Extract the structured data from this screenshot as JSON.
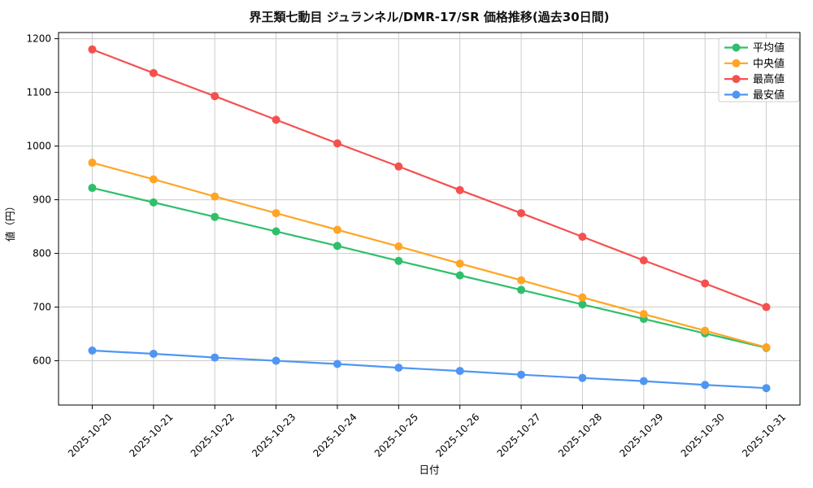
{
  "chart_data": {
    "type": "line",
    "title": "界王類七動目 ジュランネル/DMR-17/SR 価格推移(過去30日間)",
    "xlabel": "日付",
    "ylabel": "値（円）",
    "x": [
      "2025-10-20",
      "2025-10-21",
      "2025-10-22",
      "2025-10-23",
      "2025-10-24",
      "2025-10-25",
      "2025-10-26",
      "2025-10-27",
      "2025-10-28",
      "2025-10-29",
      "2025-10-30",
      "2025-10-31"
    ],
    "series": [
      {
        "key": "average",
        "name": "平均値",
        "color": "#2fbf6b",
        "values": [
          922,
          895,
          868,
          841,
          814,
          786,
          759,
          732,
          705,
          678,
          651,
          624
        ]
      },
      {
        "key": "median",
        "name": "中央値",
        "color": "#ffa524",
        "values": [
          969,
          938,
          906,
          875,
          844,
          813,
          781,
          750,
          718,
          687,
          656,
          625
        ]
      },
      {
        "key": "max",
        "name": "最高値",
        "color": "#f5504e",
        "values": [
          1180,
          1136,
          1093,
          1049,
          1005,
          962,
          918,
          875,
          831,
          787,
          744,
          700
        ]
      },
      {
        "key": "min",
        "name": "最安値",
        "color": "#4f96f3",
        "values": [
          619,
          613,
          606,
          600,
          594,
          587,
          581,
          574,
          568,
          562,
          555,
          549
        ]
      }
    ],
    "yticks": [
      600,
      700,
      800,
      900,
      1000,
      1100,
      1200
    ],
    "ylim": [
      517.5,
      1211.5
    ],
    "grid": true,
    "legend_position": "upper right",
    "style": {
      "grid_color": "#cccccc",
      "axis_color": "#000000",
      "text_color": "#000000",
      "background": "#ffffff"
    }
  }
}
